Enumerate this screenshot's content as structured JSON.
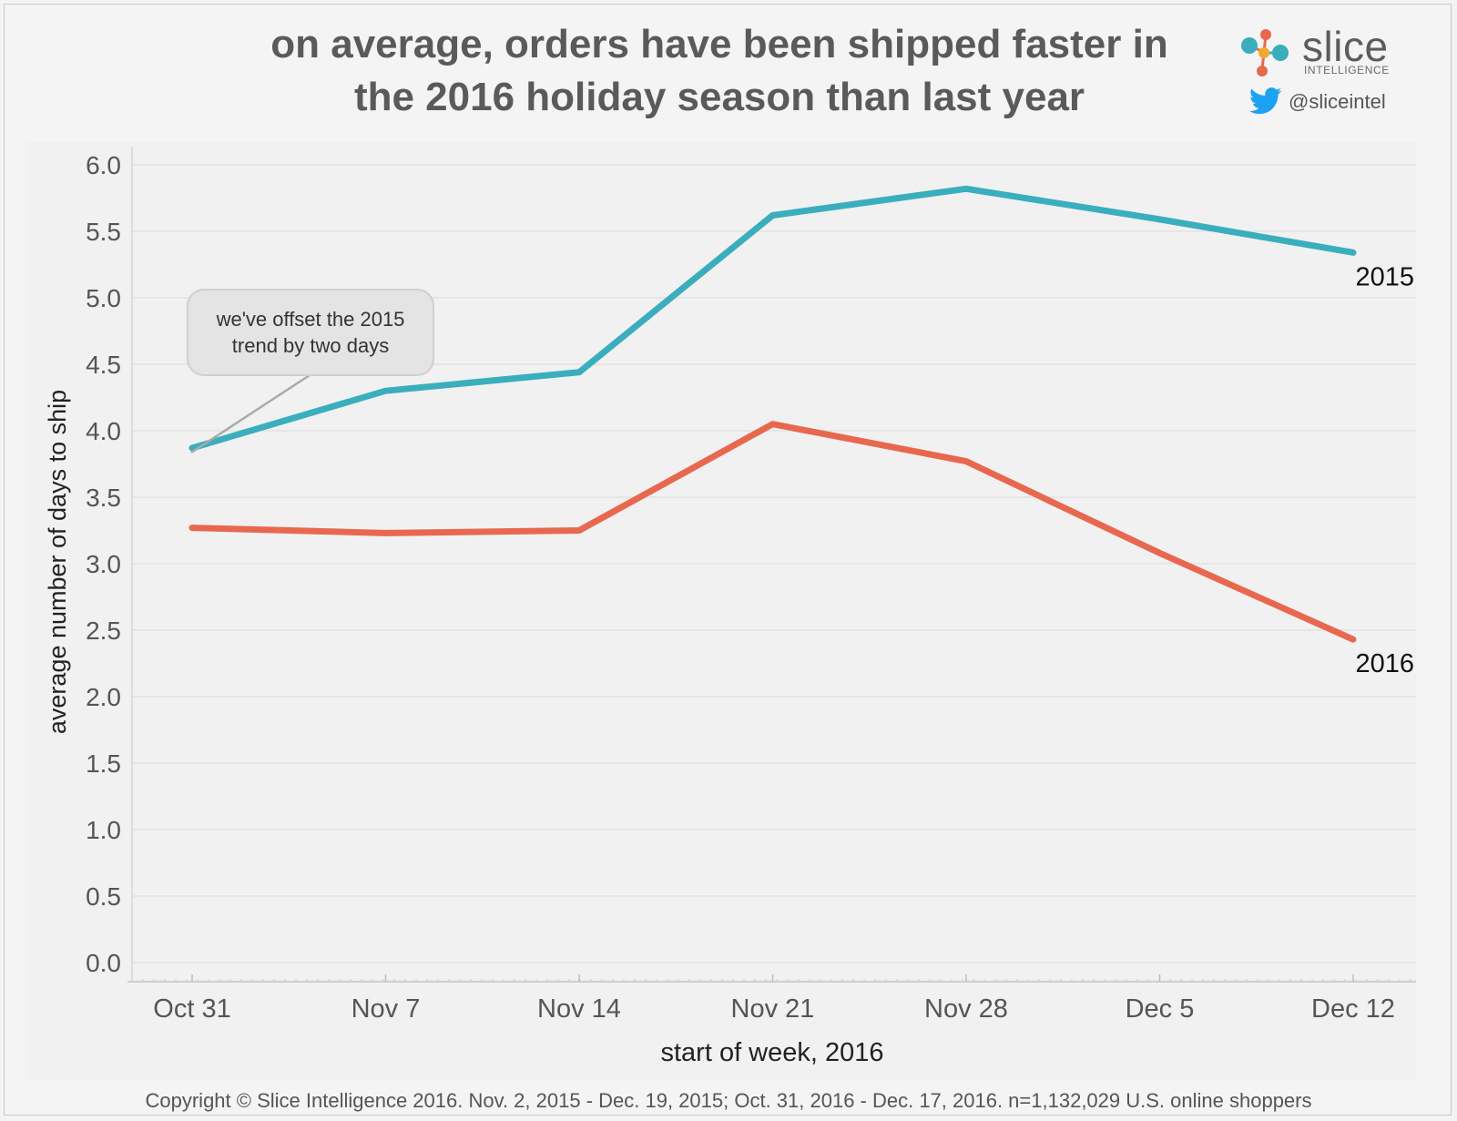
{
  "header": {
    "title_line1": "on average, orders have been shipped faster in",
    "title_line2": "the 2016 holiday season than last year"
  },
  "brand": {
    "name": "slice",
    "subtitle": "INTELLIGENCE",
    "twitter_handle": "@sliceintel",
    "logo_icon": "slice-molecule-logo-icon",
    "twitter_icon": "twitter-bird-icon"
  },
  "annotation": {
    "line1": "we've offset the 2015",
    "line2": "trend by two days"
  },
  "footer": {
    "copyright": "Copyright © Slice Intelligence 2016. Nov. 2, 2015 - Dec. 19, 2015; Oct. 31, 2016 - Dec. 17, 2016. n=1,132,029 U.S. online shoppers"
  },
  "colors": {
    "series_2015": "#3aaebd",
    "series_2016": "#e8684f",
    "text": "#555555",
    "grid": "#e2e2e2"
  },
  "chart_data": {
    "type": "line",
    "title": "on average, orders have been shipped faster in the 2016 holiday season than last year",
    "xlabel": "start of week, 2016",
    "ylabel": "average number of days to ship",
    "categories": [
      "Oct 31",
      "Nov 7",
      "Nov 14",
      "Nov 21",
      "Nov 28",
      "Dec 5",
      "Dec 12"
    ],
    "ylim": [
      0,
      6
    ],
    "yticks": [
      "0.0",
      "0.5",
      "1.0",
      "1.5",
      "2.0",
      "2.5",
      "3.0",
      "3.5",
      "4.0",
      "4.5",
      "5.0",
      "5.5",
      "6.0"
    ],
    "grid": true,
    "series": [
      {
        "name": "2015",
        "color": "#3aaebd",
        "values": [
          3.87,
          4.3,
          4.44,
          5.62,
          5.82,
          5.59,
          5.34
        ]
      },
      {
        "name": "2016",
        "color": "#e8684f",
        "values": [
          3.27,
          3.23,
          3.25,
          4.05,
          3.77,
          3.08,
          2.43
        ]
      }
    ]
  }
}
